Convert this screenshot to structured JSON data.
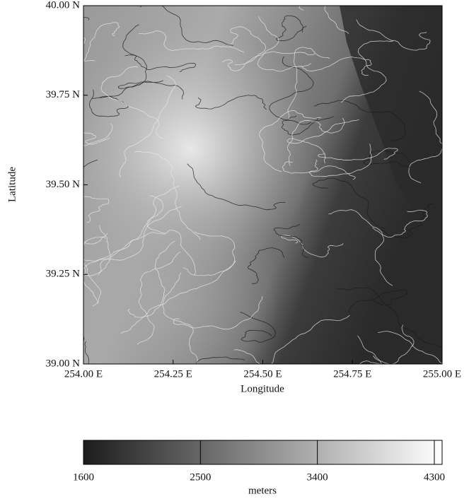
{
  "chart_data": {
    "type": "map",
    "xlabel": "Longitude",
    "ylabel": "Latitude",
    "xlim": [
      254.0,
      255.0
    ],
    "ylim": [
      39.0,
      40.0
    ],
    "xticks": [
      {
        "value": 254.0,
        "label": "254.00 E"
      },
      {
        "value": 254.25,
        "label": "254.25 E"
      },
      {
        "value": 254.5,
        "label": "254.50 E"
      },
      {
        "value": 254.75,
        "label": "254.75 E"
      },
      {
        "value": 255.0,
        "label": "255.00 E"
      }
    ],
    "yticks": [
      {
        "value": 39.0,
        "label": "39.00 N"
      },
      {
        "value": 39.25,
        "label": "39.25 N"
      },
      {
        "value": 39.5,
        "label": "39.50 N"
      },
      {
        "value": 39.75,
        "label": "39.75 N"
      },
      {
        "value": 40.0,
        "label": "40.00 N"
      }
    ],
    "colorbar": {
      "label": "meters",
      "lim": [
        1600,
        4360
      ],
      "ticks": [
        1600,
        2500,
        3400,
        4300
      ]
    }
  }
}
